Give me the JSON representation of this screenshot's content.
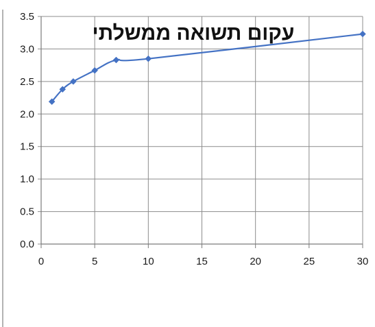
{
  "chart_data": {
    "type": "line",
    "title": "עקום תשואה ממשלתי",
    "xlabel": "",
    "ylabel": "",
    "xlim": [
      0,
      30
    ],
    "ylim": [
      0.0,
      3.5
    ],
    "x_ticks": [
      "0",
      "5",
      "10",
      "15",
      "20",
      "25",
      "30"
    ],
    "y_ticks": [
      "0.0",
      "0.5",
      "1.0",
      "1.5",
      "2.0",
      "2.5",
      "3.0",
      "3.5"
    ],
    "grid": true,
    "legend": "none",
    "series": [
      {
        "color": "#4472C4",
        "marker": "diamond",
        "x": [
          1,
          2,
          3,
          5,
          7,
          10,
          30
        ],
        "y": [
          2.19,
          2.38,
          2.5,
          2.67,
          2.83,
          2.85,
          3.23
        ]
      }
    ]
  }
}
